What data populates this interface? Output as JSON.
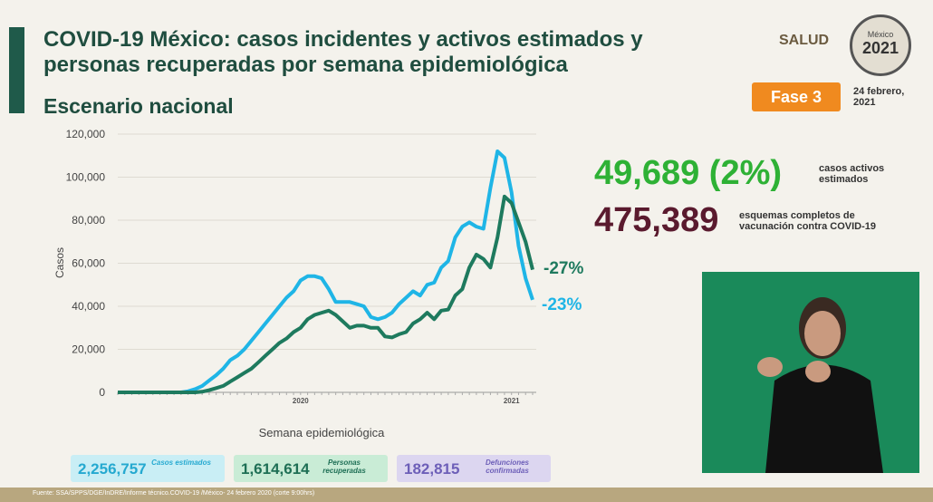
{
  "header": {
    "title": "COVID-19 México: casos incidentes y activos estimados y personas recuperadas por semana epidemiológica",
    "subtitle": "Escenario nacional",
    "logo": "SALUD",
    "emblem_top": "México",
    "emblem_year": "2021",
    "phase": "Fase 3",
    "date": "24 febrero, 2021"
  },
  "stats": [
    {
      "value": "49,689 (2%)",
      "label": "casos activos estimados"
    },
    {
      "value": "475,389",
      "label": "esquemas completos de vacunación contra COVID-19"
    }
  ],
  "boxes": [
    {
      "value": "2,256,757",
      "label": "Casos estimados"
    },
    {
      "value": "1,614,614",
      "label": "Personas recuperadas"
    },
    {
      "value": "182,815",
      "label": "Defunciones confirmadas"
    }
  ],
  "source": "Fuente: SSA/SPPS/DGE/InDRE/Informe técnico.COVID-19 /México- 24 febrero 2020 (corte 9:00hrs)",
  "chart_data": {
    "type": "line",
    "y_label": "Casos",
    "x_label": "Semana epidemiológica",
    "categories": [
      null,
      null,
      null,
      null,
      null,
      null,
      null,
      null,
      null,
      null,
      null,
      null,
      null,
      null,
      null,
      null,
      null,
      null,
      null,
      null,
      null,
      null,
      null,
      null,
      null,
      null,
      "2020",
      null,
      null,
      null,
      null,
      null,
      null,
      null,
      null,
      null,
      null,
      null,
      null,
      null,
      null,
      null,
      null,
      null,
      null,
      null,
      null,
      null,
      null,
      null,
      null,
      null,
      null,
      null,
      null,
      null,
      "2021",
      null,
      null,
      null
    ],
    "series": [
      {
        "color": "#1fb5e6",
        "values": [
          0,
          0,
          0,
          0,
          0,
          0,
          0,
          0,
          0,
          0,
          500,
          1500,
          3000,
          5500,
          8000,
          11000,
          15000,
          17000,
          20000,
          24000,
          28000,
          32000,
          36000,
          40000,
          44000,
          47000,
          52000,
          54000,
          54000,
          53000,
          48000,
          42000,
          42000,
          42000,
          41000,
          40000,
          35000,
          34000,
          35000,
          37000,
          41000,
          44000,
          47000,
          45000,
          50000,
          51000,
          58000,
          61000,
          72000,
          77000,
          79000,
          77000,
          76000,
          95000,
          112000,
          109000,
          93000,
          68000,
          53000,
          43000
        ]
      },
      {
        "color": "#1e7a5e",
        "values": [
          0,
          0,
          0,
          0,
          0,
          0,
          0,
          0,
          0,
          0,
          0,
          0,
          300,
          1000,
          2000,
          3000,
          5000,
          7000,
          9000,
          11000,
          14000,
          17000,
          20000,
          23000,
          25000,
          28000,
          30000,
          34000,
          36000,
          37000,
          38000,
          36000,
          33000,
          30000,
          31000,
          31000,
          30000,
          30000,
          26000,
          25500,
          27000,
          28000,
          32000,
          34000,
          37000,
          34000,
          38000,
          38500,
          45000,
          48000,
          58000,
          64000,
          62000,
          58000,
          72000,
          91000,
          88000,
          79000,
          70000,
          57000
        ]
      }
    ],
    "annotations": [
      "-27%",
      "-23%"
    ],
    "ylim": [
      0,
      120000
    ],
    "yticks": [
      0,
      {
        "value": 20000,
        "label": "20,000"
      },
      {
        "value": 40000,
        "label": "40,000"
      },
      {
        "value": 60000,
        "label": "60,000"
      },
      {
        "value": 80000,
        "label": "80,000"
      },
      {
        "value": 100000,
        "label": "100,000"
      },
      {
        "value": 120000,
        "label": "120,000"
      }
    ],
    "grid": true
  }
}
